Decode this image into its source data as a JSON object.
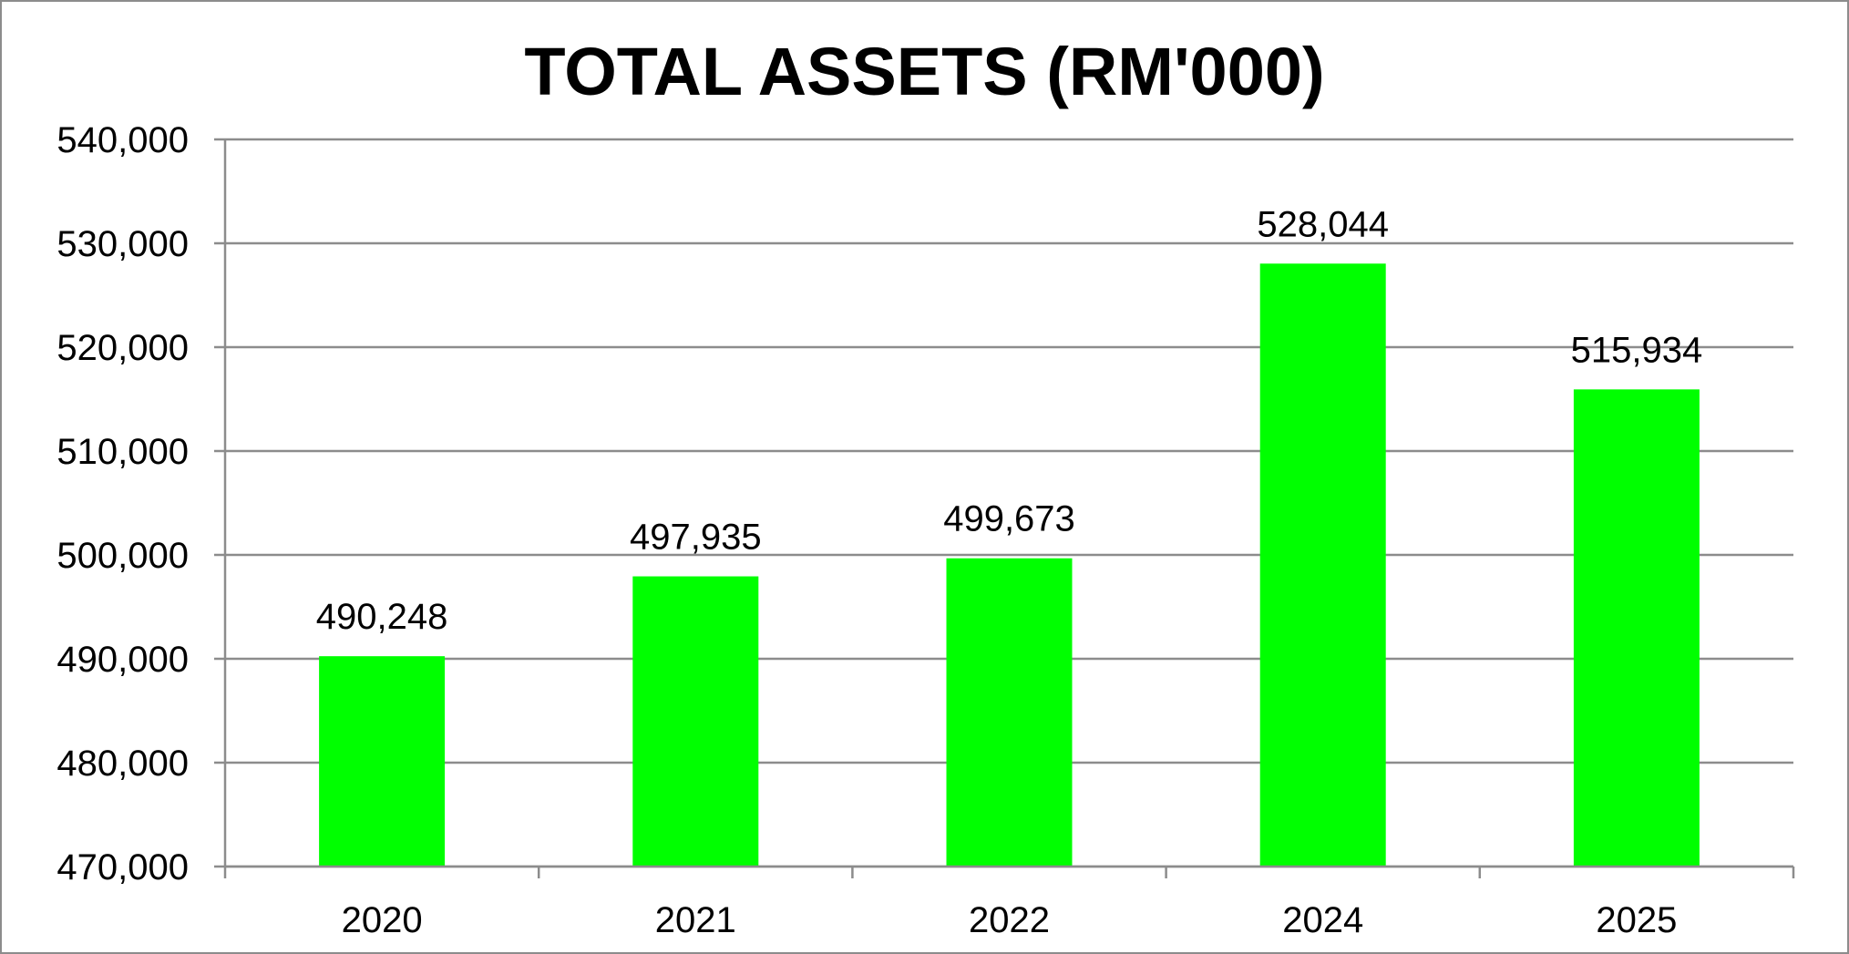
{
  "chart_data": {
    "type": "bar",
    "title": "TOTAL ASSETS (RM'000)",
    "xlabel": "",
    "ylabel": "",
    "categories": [
      "2020",
      "2021",
      "2022",
      "2024",
      "2025"
    ],
    "values": [
      490248,
      497935,
      499673,
      528044,
      515934
    ],
    "data_labels": [
      "490,248",
      "497,935",
      "499,673",
      "528,044",
      "515,934"
    ],
    "ylim": [
      470000,
      540000
    ],
    "y_ticks": [
      470000,
      480000,
      490000,
      500000,
      510000,
      520000,
      530000,
      540000
    ],
    "y_tick_labels": [
      "470,000",
      "480,000",
      "490,000",
      "500,000",
      "510,000",
      "520,000",
      "530,000",
      "540,000"
    ],
    "grid": true,
    "legend": "none",
    "bar_color": "#00ff00",
    "gridline_color": "#8c8c8c"
  }
}
